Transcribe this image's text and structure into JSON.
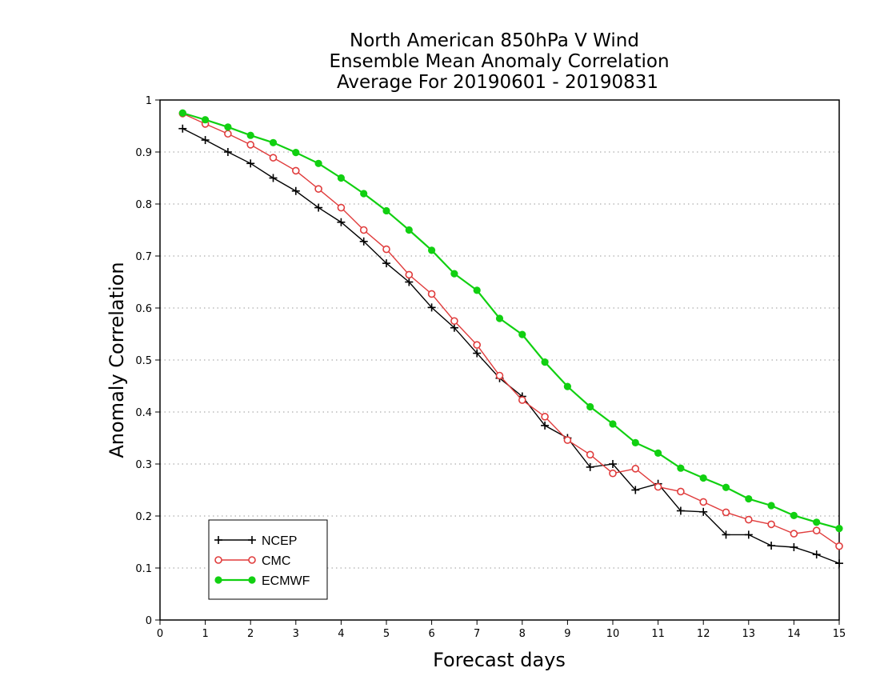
{
  "chart_data": {
    "type": "line",
    "title_lines": [
      "North American 850hPa V Wind",
      "Ensemble Mean Anomaly Correlation",
      "Average For 20190601 - 20190831"
    ],
    "xlabel": "Forecast days",
    "ylabel": "Anomaly Correlation",
    "xlim": [
      0,
      15
    ],
    "ylim": [
      0,
      1
    ],
    "x_ticks": [
      "0",
      "1",
      "2",
      "3",
      "4",
      "5",
      "6",
      "7",
      "8",
      "9",
      "10",
      "11",
      "12",
      "13",
      "14",
      "15"
    ],
    "y_ticks": [
      "0",
      "0.1",
      "0.2",
      "0.3",
      "0.4",
      "0.5",
      "0.6",
      "0.7",
      "0.8",
      "0.9",
      "1"
    ],
    "grid": "horizontal dotted",
    "legend_position": "bottom-left",
    "x": [
      0.5,
      1,
      1.5,
      2,
      2.5,
      3,
      3.5,
      4,
      4.5,
      5,
      5.5,
      6,
      6.5,
      7,
      7.5,
      8,
      8.5,
      9,
      9.5,
      10,
      10.5,
      11,
      11.5,
      12,
      12.5,
      13,
      13.5,
      14,
      14.5,
      15
    ],
    "series": [
      {
        "name": "NCEP",
        "color": "#000000",
        "marker": "plus",
        "values": [
          0.945,
          0.923,
          0.9,
          0.878,
          0.85,
          0.825,
          0.793,
          0.765,
          0.728,
          0.686,
          0.65,
          0.601,
          0.562,
          0.513,
          0.465,
          0.43,
          0.374,
          0.35,
          0.294,
          0.3,
          0.25,
          0.262,
          0.21,
          0.208,
          0.164,
          0.164,
          0.143,
          0.14,
          0.126,
          0.109
        ]
      },
      {
        "name": "CMC",
        "color": "#e03c3c",
        "marker": "open-circle",
        "values": [
          0.974,
          0.954,
          0.935,
          0.914,
          0.889,
          0.864,
          0.829,
          0.793,
          0.75,
          0.713,
          0.664,
          0.627,
          0.575,
          0.529,
          0.47,
          0.423,
          0.391,
          0.346,
          0.318,
          0.282,
          0.291,
          0.256,
          0.247,
          0.227,
          0.207,
          0.193,
          0.184,
          0.166,
          0.172,
          0.142
        ]
      },
      {
        "name": "ECMWF",
        "color": "#11d011",
        "marker": "filled-circle",
        "values": [
          0.975,
          0.962,
          0.948,
          0.932,
          0.918,
          0.899,
          0.878,
          0.85,
          0.82,
          0.787,
          0.75,
          0.711,
          0.666,
          0.634,
          0.58,
          0.549,
          0.496,
          0.449,
          0.41,
          0.377,
          0.341,
          0.321,
          0.292,
          0.273,
          0.255,
          0.233,
          0.22,
          0.201,
          0.188,
          0.176
        ]
      }
    ]
  }
}
